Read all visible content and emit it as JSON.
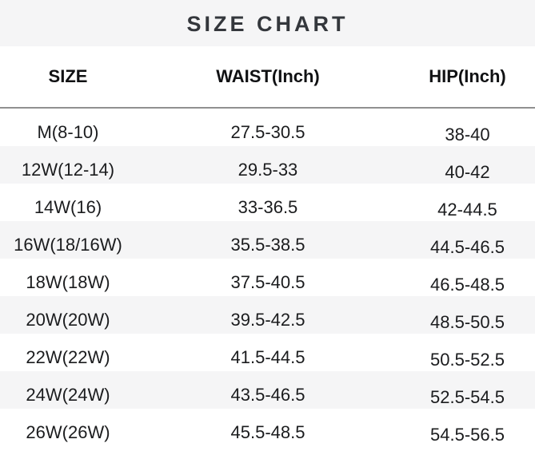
{
  "title": "SIZE CHART",
  "table": {
    "columns": [
      "SIZE",
      "WAIST(Inch)",
      "HIP(Inch)"
    ],
    "rows": [
      {
        "size": "M(8-10)",
        "waist": "27.5-30.5",
        "hip": "38-40"
      },
      {
        "size": "12W(12-14)",
        "waist": "29.5-33",
        "hip": "40-42"
      },
      {
        "size": "14W(16)",
        "waist": "33-36.5",
        "hip": "42-44.5"
      },
      {
        "size": "16W(18/16W)",
        "waist": "35.5-38.5",
        "hip": "44.5-46.5"
      },
      {
        "size": "18W(18W)",
        "waist": "37.5-40.5",
        "hip": "46.5-48.5"
      },
      {
        "size": "20W(20W)",
        "waist": "39.5-42.5",
        "hip": "48.5-50.5"
      },
      {
        "size": "22W(22W)",
        "waist": "41.5-44.5",
        "hip": "50.5-52.5"
      },
      {
        "size": "24W(24W)",
        "waist": "43.5-46.5",
        "hip": "52.5-54.5"
      },
      {
        "size": "26W(26W)",
        "waist": "45.5-48.5",
        "hip": "54.5-56.5"
      }
    ]
  },
  "colors": {
    "band_bg": "#f5f5f6",
    "row_alt_bg": "#f5f5f6",
    "divider": "#909090",
    "title_text": "#34373c",
    "header_text": "#101113",
    "body_text": "#1b1c1e"
  }
}
